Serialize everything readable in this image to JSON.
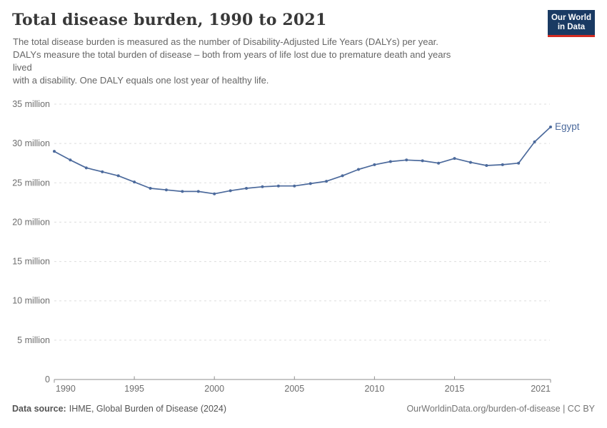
{
  "header": {
    "title": "Total disease burden, 1990 to 2021",
    "subtitle": "The total disease burden is measured as the number of Disability-Adjusted Life Years (DALYs) per year.\nDALYs measure the total burden of disease – both from years of life lost due to premature death and years\nlived\nwith a disability. One DALY equals one lost year of healthy life.",
    "logo": {
      "line1": "Our World",
      "line2": "in Data",
      "bg_color": "#1a3a63",
      "bar_color": "#d42b21",
      "text_color": "#ffffff"
    }
  },
  "chart_data": {
    "type": "line",
    "title": "Total disease burden, 1990 to 2021",
    "xlabel": "",
    "ylabel": "",
    "unit": "DALYs per year (million)",
    "xlim": [
      1990,
      2021
    ],
    "ylim_million": [
      0,
      35
    ],
    "grid": true,
    "x": [
      1990,
      1991,
      1992,
      1993,
      1994,
      1995,
      1996,
      1997,
      1998,
      1999,
      2000,
      2001,
      2002,
      2003,
      2004,
      2005,
      2006,
      2007,
      2008,
      2009,
      2010,
      2011,
      2012,
      2013,
      2014,
      2015,
      2016,
      2017,
      2018,
      2019,
      2020,
      2021
    ],
    "series": [
      {
        "name": "Egypt",
        "color": "#4C6A9C",
        "values_million": [
          29.0,
          27.9,
          26.9,
          26.4,
          25.9,
          25.1,
          24.3,
          24.1,
          23.9,
          23.9,
          23.6,
          24.0,
          24.3,
          24.5,
          24.6,
          24.6,
          24.9,
          25.2,
          25.9,
          26.7,
          27.3,
          27.7,
          27.9,
          27.8,
          27.5,
          28.1,
          27.6,
          27.2,
          27.3,
          27.5,
          30.2,
          32.1
        ]
      }
    ],
    "y_ticks": [
      {
        "value": 0,
        "label": "0"
      },
      {
        "value": 5,
        "label": "5 million"
      },
      {
        "value": 10,
        "label": "10 million"
      },
      {
        "value": 15,
        "label": "15 million"
      },
      {
        "value": 20,
        "label": "20 million"
      },
      {
        "value": 25,
        "label": "25 million"
      },
      {
        "value": 30,
        "label": "30 million"
      },
      {
        "value": 35,
        "label": "35 million"
      }
    ],
    "x_ticks": [
      {
        "value": 1990,
        "label": "1990"
      },
      {
        "value": 1995,
        "label": "1995"
      },
      {
        "value": 2000,
        "label": "2000"
      },
      {
        "value": 2005,
        "label": "2005"
      },
      {
        "value": 2010,
        "label": "2010"
      },
      {
        "value": 2015,
        "label": "2015"
      },
      {
        "value": 2021,
        "label": "2021"
      }
    ],
    "legend_position": "end-of-line-label"
  },
  "colors": {
    "grid": "#dddddd",
    "axis": "#8f8f8f",
    "tick_label": "#6e6e6e",
    "title": "#383838",
    "subtitle": "#666666"
  },
  "footer": {
    "source_label": "Data source:",
    "source_text": "IHME, Global Burden of Disease (2024)",
    "link_text": "OurWorldinData.org/burden-of-disease | CC BY"
  }
}
